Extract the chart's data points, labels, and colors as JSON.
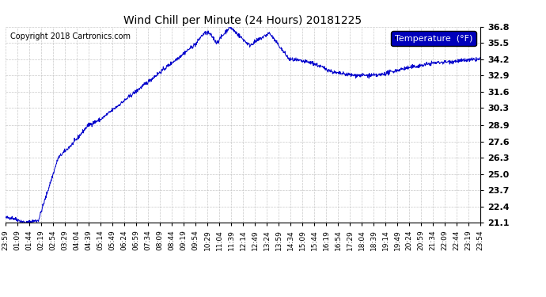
{
  "title": "Wind Chill per Minute (24 Hours) 20181225",
  "copyright_text": "Copyright 2018 Cartronics.com",
  "legend_label": "Temperature  (°F)",
  "line_color": "#0000cc",
  "background_color": "#ffffff",
  "grid_color": "#bbbbbb",
  "legend_bg": "#0000bb",
  "legend_text_color": "#ffffff",
  "y_ticks": [
    21.1,
    22.4,
    23.7,
    25.0,
    26.3,
    27.6,
    28.9,
    30.3,
    31.6,
    32.9,
    34.2,
    35.5,
    36.8
  ],
  "x_tick_labels": [
    "23:59",
    "01:09",
    "01:44",
    "02:19",
    "02:54",
    "03:29",
    "04:04",
    "04:39",
    "05:14",
    "05:49",
    "06:24",
    "06:59",
    "07:34",
    "08:09",
    "08:44",
    "09:19",
    "09:54",
    "10:29",
    "11:04",
    "11:39",
    "12:14",
    "12:49",
    "13:24",
    "13:59",
    "14:34",
    "15:09",
    "15:44",
    "16:19",
    "16:54",
    "17:29",
    "18:04",
    "18:39",
    "19:14",
    "19:49",
    "20:24",
    "20:59",
    "21:34",
    "22:09",
    "22:44",
    "23:19",
    "23:54"
  ],
  "ylim_min": 21.1,
  "ylim_max": 36.8
}
